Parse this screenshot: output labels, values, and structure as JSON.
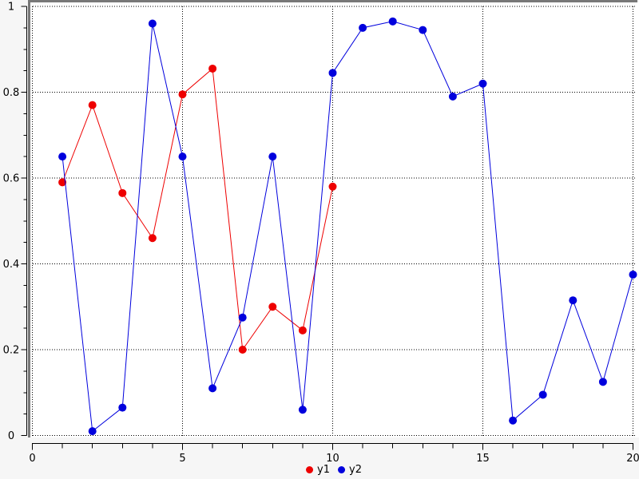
{
  "window": {
    "background": "#f6f6f6",
    "panel_background": "#ffffff",
    "frame_border_color": "#787878",
    "axis_color": "#000000",
    "grid_color": "#000000",
    "tick_label_color": "#000000"
  },
  "chart_data": {
    "type": "line",
    "title": "",
    "xlabel": "",
    "ylabel": "",
    "xlim": [
      0,
      20
    ],
    "ylim": [
      0,
      1
    ],
    "grid": true,
    "grid_style": "dotted",
    "legend_position": "bottom-center",
    "axes": {
      "x": {
        "major_ticks": [
          0,
          5,
          10,
          15,
          20
        ],
        "tick_labels": [
          "0",
          "5",
          "10",
          "15",
          "20"
        ],
        "minor_tick_step": 1
      },
      "y": {
        "major_ticks": [
          0,
          0.2,
          0.4,
          0.6,
          0.8,
          1
        ],
        "tick_labels": [
          "0",
          "0.2",
          "0.4",
          "0.6",
          "0.8",
          "1"
        ],
        "minor_tick_step": 0.05
      }
    },
    "series": [
      {
        "name": "y1",
        "color": "#ee0000",
        "marker": "circle",
        "x": [
          1,
          2,
          3,
          4,
          5,
          6,
          7,
          8,
          9,
          10
        ],
        "values": [
          0.59,
          0.77,
          0.565,
          0.46,
          0.795,
          0.855,
          0.2,
          0.3,
          0.245,
          0.58
        ]
      },
      {
        "name": "y2",
        "color": "#0000dd",
        "marker": "circle",
        "x": [
          1,
          2,
          3,
          4,
          5,
          6,
          7,
          8,
          9,
          10,
          11,
          12,
          13,
          14,
          15,
          16,
          17,
          18,
          19,
          20
        ],
        "values": [
          0.65,
          0.01,
          0.065,
          0.96,
          0.65,
          0.11,
          0.275,
          0.65,
          0.06,
          0.845,
          0.95,
          0.965,
          0.945,
          0.79,
          0.82,
          0.035,
          0.095,
          0.315,
          0.125,
          0.375
        ]
      }
    ]
  },
  "legend": {
    "items": [
      {
        "label": "y1",
        "color": "#ee0000"
      },
      {
        "label": "y2",
        "color": "#0000dd"
      }
    ]
  }
}
